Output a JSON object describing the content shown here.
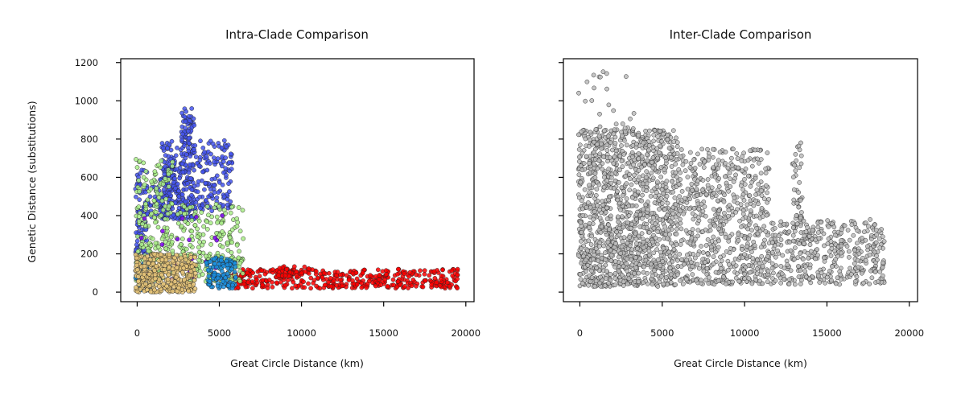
{
  "chart_data": [
    {
      "type": "scatter",
      "title": "Intra-Clade Comparison",
      "xlabel": "Great Circle Distance (km)",
      "ylabel": "Genetic Distance (substitutions)",
      "xlim": [
        -1000,
        20500
      ],
      "ylim": [
        -50,
        1220
      ],
      "xticks": [
        0,
        5000,
        10000,
        15000,
        20000
      ],
      "xtick_labels": [
        "0",
        "5000",
        "10000",
        "15000",
        "20000"
      ],
      "yticks": [
        0,
        200,
        400,
        600,
        800,
        1000,
        1200
      ],
      "ytick_labels": [
        "0",
        "200",
        "400",
        "600",
        "800",
        "1000",
        "1200"
      ],
      "grid": false,
      "series": [
        {
          "color": "#ff0000",
          "clusters": [
            {
              "x": [
                5500,
                19500
              ],
              "y": [
                20,
                120
              ],
              "count": 420
            },
            {
              "x": [
                8500,
                10500
              ],
              "y": [
                80,
                135
              ],
              "count": 40
            }
          ]
        },
        {
          "color": "#4455ee",
          "clusters": [
            {
              "x": [
                -100,
                600
              ],
              "y": [
                200,
                640
              ],
              "count": 80
            },
            {
              "x": [
                1500,
                2700
              ],
              "y": [
                380,
                790
              ],
              "count": 170
            },
            {
              "x": [
                2700,
                3500
              ],
              "y": [
                380,
                960
              ],
              "count": 170
            },
            {
              "x": [
                3500,
                5800
              ],
              "y": [
                420,
                800
              ],
              "count": 140
            },
            {
              "x": [
                600,
                1800
              ],
              "y": [
                380,
                600
              ],
              "count": 40
            }
          ]
        },
        {
          "color": "#aaee88",
          "clusters": [
            {
              "x": [
                -100,
                2200
              ],
              "y": [
                60,
                700
              ],
              "count": 200
            },
            {
              "x": [
                2000,
                6500
              ],
              "y": [
                160,
                460
              ],
              "count": 150
            },
            {
              "x": [
                3000,
                6500
              ],
              "y": [
                50,
                200
              ],
              "count": 80
            }
          ]
        },
        {
          "color": "#7a00ee",
          "clusters": [
            {
              "x": [
                0,
                5500
              ],
              "y": [
                50,
                400
              ],
              "count": 25
            }
          ]
        },
        {
          "color": "#1a8fe0",
          "clusters": [
            {
              "x": [
                4200,
                6000
              ],
              "y": [
                20,
                180
              ],
              "count": 120
            },
            {
              "x": [
                -100,
                1000
              ],
              "y": [
                10,
                150
              ],
              "count": 40
            }
          ]
        },
        {
          "color": "#e8c679",
          "clusters": [
            {
              "x": [
                -100,
                3600
              ],
              "y": [
                0,
                200
              ],
              "count": 380
            }
          ]
        }
      ]
    },
    {
      "type": "scatter",
      "title": "Inter-Clade Comparison",
      "xlabel": "Great Circle Distance (km)",
      "ylabel": "",
      "xlim": [
        -1000,
        20500
      ],
      "ylim": [
        -50,
        1220
      ],
      "xticks": [
        0,
        5000,
        10000,
        15000,
        20000
      ],
      "xtick_labels": [
        "0",
        "5000",
        "10000",
        "15000",
        "20000"
      ],
      "yticks": [
        0,
        200,
        400,
        600,
        800,
        1000,
        1200
      ],
      "ytick_labels": [],
      "grid": false,
      "series": [
        {
          "color": "#bbbbbb",
          "clusters": [
            {
              "x": [
                -100,
                6000
              ],
              "y": [
                30,
                850
              ],
              "count": 1300
            },
            {
              "x": [
                6000,
                11500
              ],
              "y": [
                40,
                750
              ],
              "count": 650
            },
            {
              "x": [
                11500,
                18500
              ],
              "y": [
                40,
                380
              ],
              "count": 420
            },
            {
              "x": [
                -100,
                3500
              ],
              "y": [
                850,
                1160
              ],
              "count": 25
            },
            {
              "x": [
                12900,
                13500
              ],
              "y": [
                380,
                790
              ],
              "count": 40
            }
          ]
        }
      ]
    }
  ]
}
